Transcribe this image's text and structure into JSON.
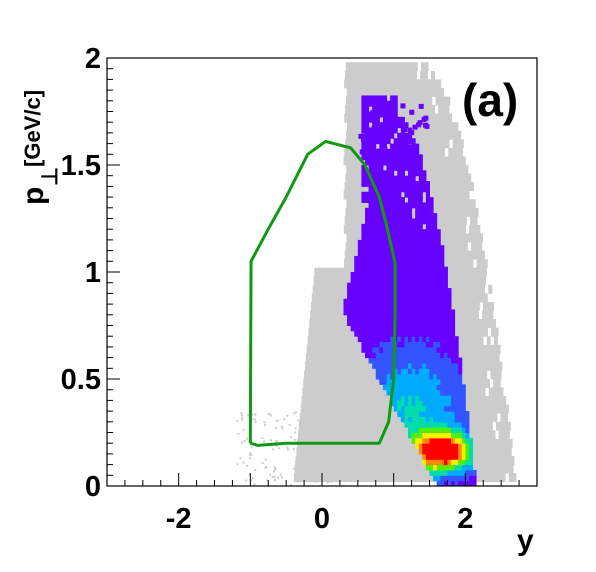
{
  "chart_data": {
    "type": "heatmap",
    "xlabel": "y",
    "ylabel_main": "p",
    "ylabel_sub": "⊥",
    "ylabel_unit": "[GeV/c]",
    "panel_label": "(a)",
    "xlim": [
      -3,
      3
    ],
    "ylim": [
      0,
      2
    ],
    "x_ticks": [
      -2,
      0,
      2
    ],
    "x_tick_labels": [
      "-2",
      "0",
      "2"
    ],
    "y_ticks": [
      0,
      0.5,
      1,
      1.5,
      2
    ],
    "y_tick_labels": [
      "0",
      "0.5",
      "1",
      "1.5",
      "2"
    ],
    "grid": false,
    "colors": {
      "background_region": "#cccccc",
      "acceptance_contour": "#119911",
      "palette": [
        "#6600ff",
        "#3355ff",
        "#00aaff",
        "#00ddaa",
        "#55ee00",
        "#ffee00",
        "#ff8800",
        "#ff0000"
      ]
    },
    "acceptance_contour": [
      [
        -1.0,
        0.2
      ],
      [
        -0.9,
        0.19
      ],
      [
        -0.5,
        0.2
      ],
      [
        0.0,
        0.2
      ],
      [
        0.5,
        0.2
      ],
      [
        0.8,
        0.2
      ],
      [
        0.93,
        0.3
      ],
      [
        1.0,
        0.5
      ],
      [
        1.02,
        0.8
      ],
      [
        1.02,
        1.04
      ],
      [
        0.9,
        1.22
      ],
      [
        0.8,
        1.35
      ],
      [
        0.6,
        1.5
      ],
      [
        0.4,
        1.58
      ],
      [
        0.05,
        1.61
      ],
      [
        -0.2,
        1.55
      ],
      [
        -0.5,
        1.35
      ],
      [
        -0.75,
        1.2
      ],
      [
        -0.99,
        1.05
      ],
      [
        -1.0,
        0.2
      ]
    ]
  }
}
